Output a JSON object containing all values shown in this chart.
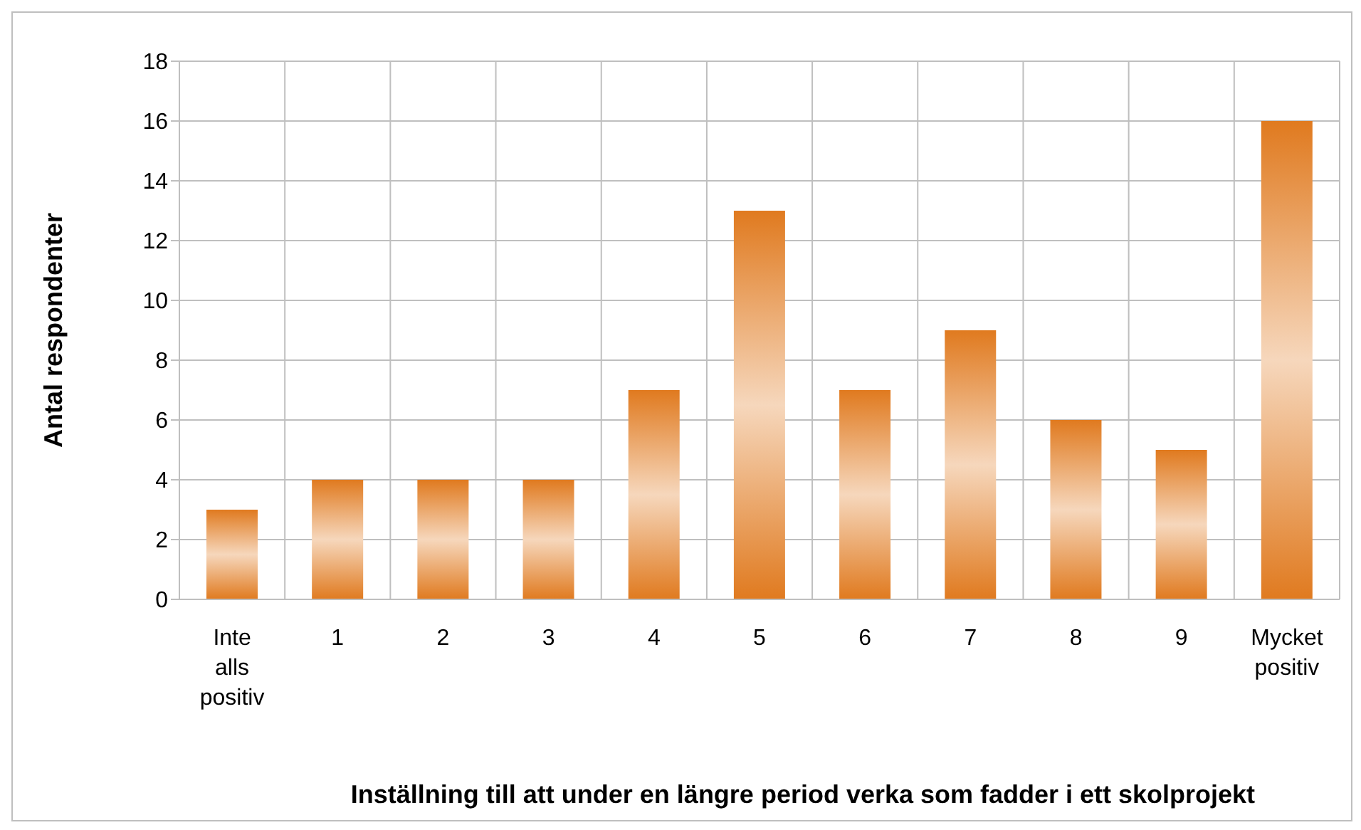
{
  "chart_data": {
    "type": "bar",
    "xlabel": "Inställning till att under en längre period verka som fadder i ett skolprojekt",
    "ylabel": "Antal respondenter",
    "categories": [
      "Inte alls positiv",
      "1",
      "2",
      "3",
      "4",
      "5",
      "6",
      "7",
      "8",
      "9",
      "Mycket positiv"
    ],
    "values": [
      3,
      4,
      4,
      4,
      7,
      13,
      7,
      9,
      6,
      5,
      16
    ],
    "color": "#e07a1f",
    "ylim": [
      0,
      18
    ],
    "yticks": [
      0,
      2,
      4,
      6,
      8,
      10,
      12,
      14,
      16,
      18
    ],
    "grid": true
  }
}
